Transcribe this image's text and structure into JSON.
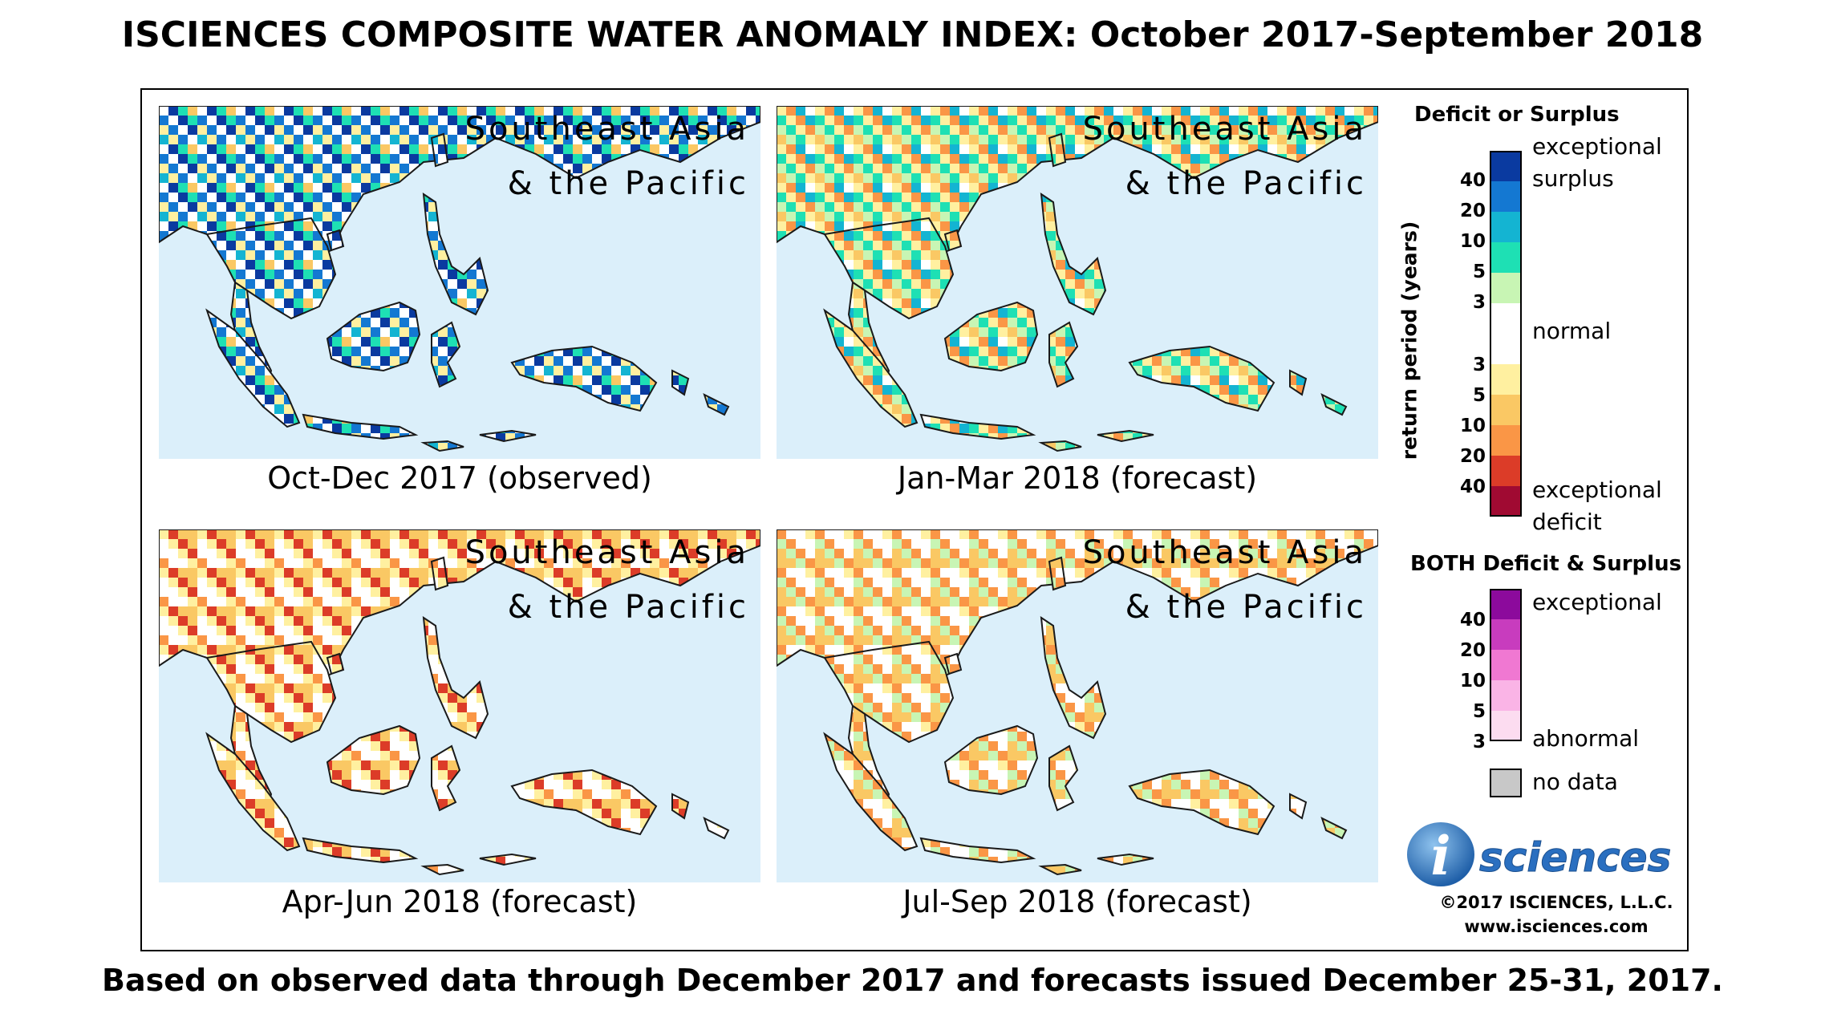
{
  "title": "ISCIENCES COMPOSITE WATER ANOMALY INDEX: October 2017-September 2018",
  "footer": "Based on observed data through December 2017 and forecasts issued December 25-31, 2017.",
  "panels": [
    {
      "region_line1": "Southeast Asia",
      "region_line2": "& the Pacific",
      "caption": "Oct-Dec 2017 (observed)",
      "scheme": "wet"
    },
    {
      "region_line1": "Southeast Asia",
      "region_line2": "& the Pacific",
      "caption": "Jan-Mar 2018 (forecast)",
      "scheme": "mixed"
    },
    {
      "region_line1": "Southeast Asia",
      "region_line2": "& the Pacific",
      "caption": "Apr-Jun 2018 (forecast)",
      "scheme": "dry"
    },
    {
      "region_line1": "Southeast Asia",
      "region_line2": "& the Pacific",
      "caption": "Jul-Sep 2018 (forecast)",
      "scheme": "dry"
    }
  ],
  "legend": {
    "deficit_surplus_title": "Deficit or Surplus",
    "axis_title": "return period (years)",
    "surplus_ticks": [
      "40",
      "20",
      "10",
      "5",
      "3"
    ],
    "deficit_ticks": [
      "3",
      "5",
      "10",
      "20",
      "40"
    ],
    "label_exceptional_surplus_1": "exceptional",
    "label_exceptional_surplus_2": "surplus",
    "label_normal": "normal",
    "label_exceptional_deficit_1": "exceptional",
    "label_exceptional_deficit_2": "deficit",
    "surplus_colors": [
      "#0a3aa0",
      "#1478d2",
      "#14b4d2",
      "#1ee0b4",
      "#c8f5b4"
    ],
    "normal_color": "#ffffff",
    "deficit_colors": [
      "#fff0a0",
      "#fac864",
      "#fa9646",
      "#dc3c28",
      "#a00a32"
    ],
    "both_title": "BOTH Deficit & Surplus",
    "both_ticks": [
      "40",
      "20",
      "10",
      "5",
      "3"
    ],
    "both_colors": [
      "#8c0a9c",
      "#c83cbe",
      "#f078d2",
      "#fab4e6",
      "#fcdcf0"
    ],
    "label_both_exceptional": "exceptional",
    "label_both_abnormal": "abnormal",
    "no_data_label": "no data",
    "no_data_color": "#c8c8c8"
  },
  "logo": {
    "letter": "i",
    "word": "sciences"
  },
  "copyright": "©2017 ISCIENCES, L.L.C.",
  "website": "www.isciences.com"
}
